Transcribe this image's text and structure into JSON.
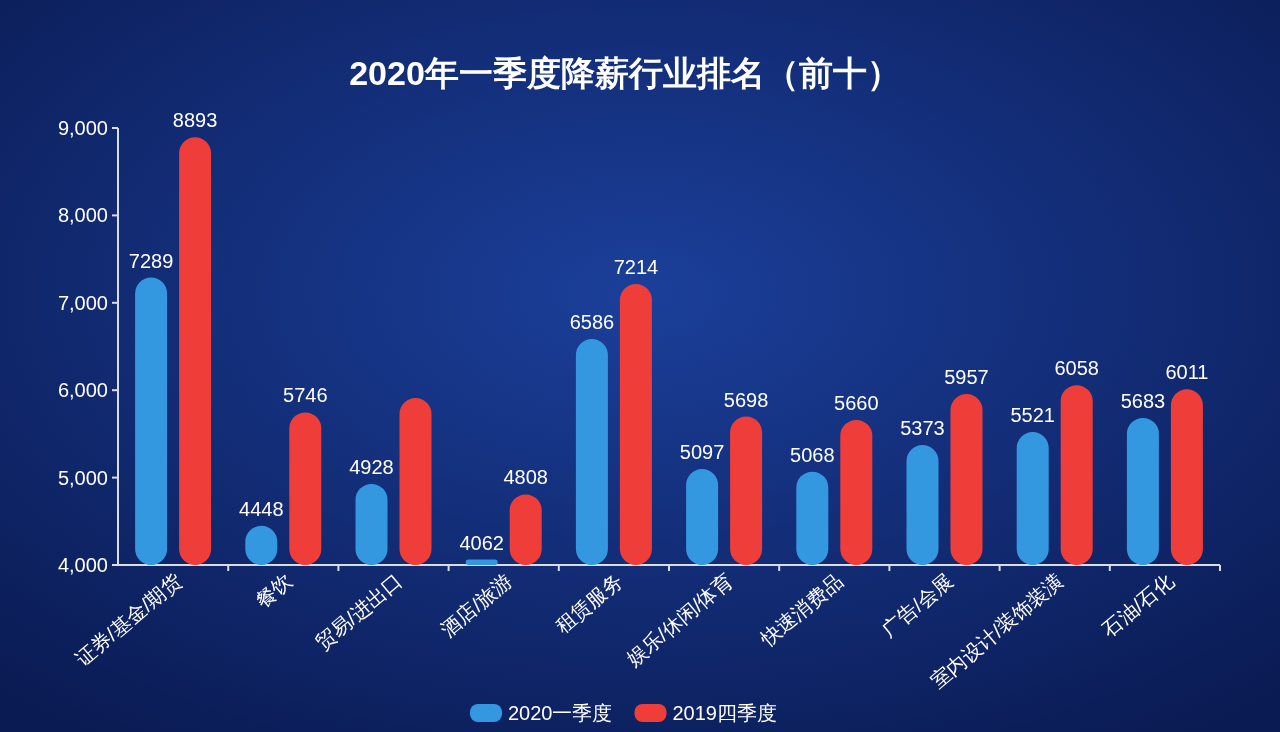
{
  "chart_data": {
    "type": "bar",
    "title": "2020年一季度降薪行业排名（前十）",
    "categories": [
      "证券/基金/期货",
      "餐饮",
      "贸易/进出口",
      "酒店/旅游",
      "租赁服务",
      "娱乐/休闲/体育",
      "快速消费品",
      "广告/会展",
      "室内设计/装饰装潢",
      "石油/石化"
    ],
    "series": [
      {
        "name": "2020一季度",
        "color": "#3498e0",
        "values": [
          7289,
          4448,
          4928,
          4062,
          6586,
          5097,
          5068,
          5373,
          5521,
          5683
        ],
        "value_labels": [
          "7289",
          "4448",
          "4928",
          "4062",
          "6586",
          "5097",
          "5068",
          "5373",
          "5521",
          "5683"
        ]
      },
      {
        "name": "2019四季度",
        "color": "#ef3e3a",
        "values": [
          8893,
          5746,
          5910,
          4808,
          7214,
          5698,
          5660,
          5957,
          6058,
          6011
        ],
        "value_labels": [
          "8893",
          "5746",
          null,
          "4808",
          "7214",
          "5698",
          "5660",
          "5957",
          "6058",
          "6011"
        ]
      }
    ],
    "ylim": [
      4000,
      9000
    ],
    "yticks": [
      {
        "value": 4000,
        "label": "4,000"
      },
      {
        "value": 5000,
        "label": "5,000"
      },
      {
        "value": 6000,
        "label": "6,000"
      },
      {
        "value": 7000,
        "label": "7,000"
      },
      {
        "value": 8000,
        "label": "8,000"
      },
      {
        "value": 9000,
        "label": "9,000"
      }
    ],
    "grid": false,
    "legend": "bottom"
  }
}
